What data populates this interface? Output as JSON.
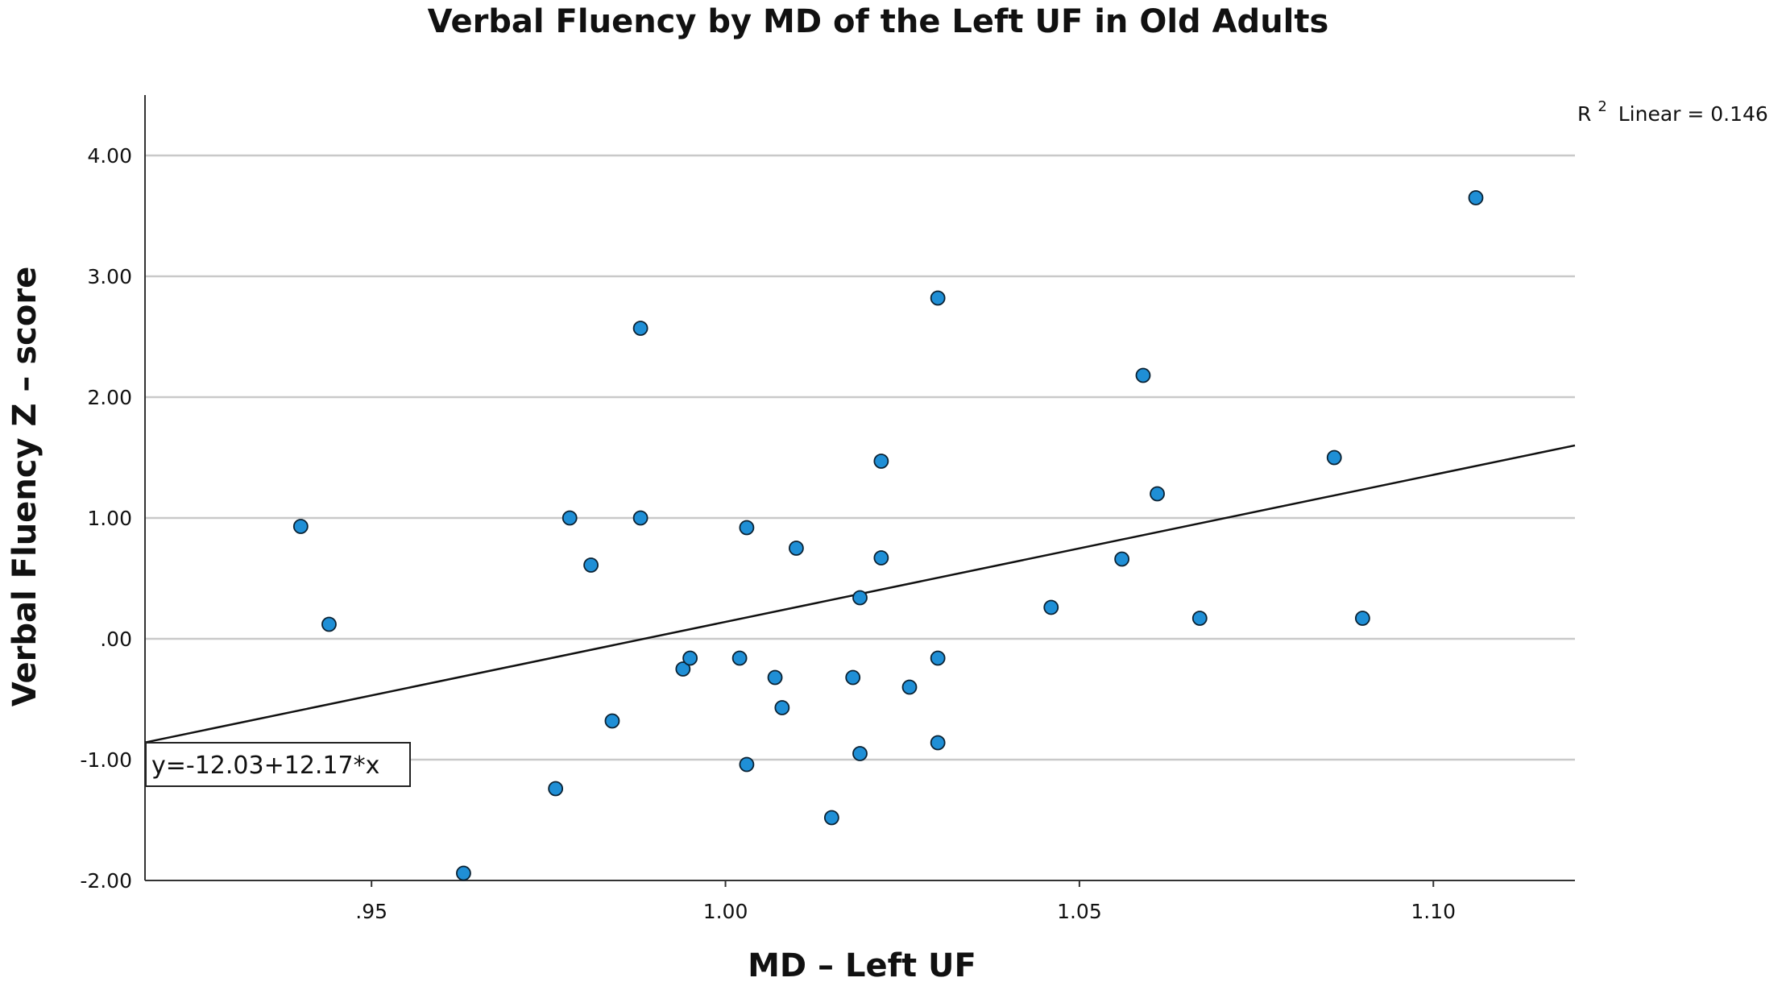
{
  "chart_data": {
    "type": "scatter",
    "title": "Verbal Fluency by MD of the Left UF in Old Adults",
    "xlabel": "MD – Left UF",
    "ylabel": "Verbal Fluency Z – score",
    "xlim": [
      0.918,
      1.12
    ],
    "ylim": [
      -2.0,
      4.5
    ],
    "x_ticks": [
      0.95,
      1.0,
      1.05,
      1.1
    ],
    "x_tick_labels": [
      ".95",
      "1.00",
      "1.05",
      "1.10"
    ],
    "y_ticks": [
      -2.0,
      -1.0,
      0.0,
      1.0,
      2.0,
      3.0,
      4.0
    ],
    "y_tick_labels": [
      "-2.00",
      "-1.00",
      ".00",
      "1.00",
      "2.00",
      "3.00",
      "4.00"
    ],
    "grid": true,
    "r2_annotation": {
      "prefix": "R",
      "superscript": "2",
      "text": "Linear = 0.146"
    },
    "fit_line": {
      "intercept": -12.03,
      "slope": 12.17,
      "equation_label": "y=-12.03+12.17*x"
    },
    "points": [
      {
        "x": 0.94,
        "y": 0.93
      },
      {
        "x": 0.944,
        "y": 0.12
      },
      {
        "x": 0.963,
        "y": -1.94
      },
      {
        "x": 0.976,
        "y": -1.24
      },
      {
        "x": 0.978,
        "y": 1.0
      },
      {
        "x": 0.981,
        "y": 0.61
      },
      {
        "x": 0.984,
        "y": -0.68
      },
      {
        "x": 0.988,
        "y": 2.57
      },
      {
        "x": 0.988,
        "y": 1.0
      },
      {
        "x": 0.994,
        "y": -0.25
      },
      {
        "x": 0.995,
        "y": -0.16
      },
      {
        "x": 1.002,
        "y": -0.16
      },
      {
        "x": 1.003,
        "y": 0.92
      },
      {
        "x": 1.003,
        "y": -1.04
      },
      {
        "x": 1.007,
        "y": -0.32
      },
      {
        "x": 1.008,
        "y": -0.57
      },
      {
        "x": 1.01,
        "y": 0.75
      },
      {
        "x": 1.015,
        "y": -1.48
      },
      {
        "x": 1.018,
        "y": -0.32
      },
      {
        "x": 1.019,
        "y": -0.95
      },
      {
        "x": 1.019,
        "y": 0.34
      },
      {
        "x": 1.022,
        "y": 1.47
      },
      {
        "x": 1.022,
        "y": 0.67
      },
      {
        "x": 1.026,
        "y": -0.4
      },
      {
        "x": 1.03,
        "y": 2.82
      },
      {
        "x": 1.03,
        "y": -0.16
      },
      {
        "x": 1.03,
        "y": -0.86
      },
      {
        "x": 1.046,
        "y": 0.26
      },
      {
        "x": 1.056,
        "y": 0.66
      },
      {
        "x": 1.059,
        "y": 2.18
      },
      {
        "x": 1.061,
        "y": 1.2
      },
      {
        "x": 1.067,
        "y": 0.17
      },
      {
        "x": 1.086,
        "y": 1.5
      },
      {
        "x": 1.09,
        "y": 0.17
      },
      {
        "x": 1.106,
        "y": 3.65
      }
    ]
  }
}
